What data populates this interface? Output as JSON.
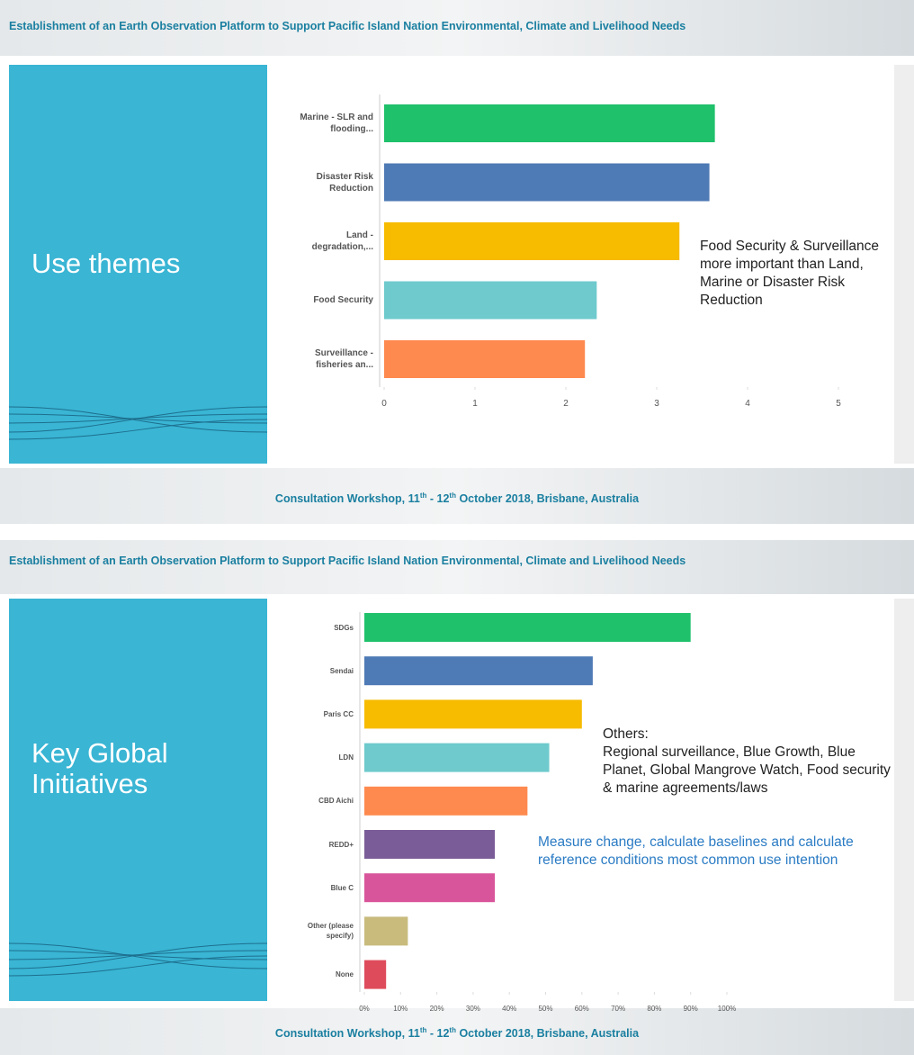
{
  "slides": [
    {
      "header": "Establishment of an Earth Observation Platform to Support Pacific Island Nation Environmental, Climate and Livelihood Needs",
      "side_title": "Use themes",
      "footer": [
        "Consultation Workshop, 11",
        "th",
        " - 12",
        "th",
        " October 2018, Brisbane, Australia"
      ]
    },
    {
      "header": "Establishment of an Earth Observation Platform to Support Pacific Island Nation Environmental, Climate and Livelihood Needs",
      "side_title": "Key Global Initiatives",
      "footer": [
        "Consultation Workshop, 11",
        "th",
        " - 12",
        "th",
        " October 2018, Brisbane, Australia"
      ]
    }
  ],
  "chart_data": [
    {
      "type": "hbar",
      "categories": [
        "Marine - SLR and flooding...",
        "Disaster Risk Reduction",
        "Land - degradation,...",
        "Food Security",
        "Surveillance - fisheries an..."
      ],
      "values": [
        3.64,
        3.58,
        3.25,
        2.34,
        2.21
      ],
      "colors": [
        "#1fc16b",
        "#4e7ab5",
        "#f7bb00",
        "#6ecacd",
        "#fe8a4f"
      ],
      "xlim": [
        0,
        5
      ],
      "xticks": [
        0,
        1,
        2,
        3,
        4,
        5
      ],
      "annotations": [
        {
          "text": "Food Security & Surveillance more important than Land, Marine or Disaster Risk Reduction",
          "color": "#222222"
        }
      ]
    },
    {
      "type": "hbar",
      "categories": [
        "SDGs",
        "Sendai",
        "Paris CC",
        "LDN",
        "CBD Aichi",
        "REDD+",
        "Blue C",
        "Other (please specify)",
        "None"
      ],
      "values": [
        90,
        63,
        60,
        51,
        45,
        36,
        36,
        12,
        6
      ],
      "colors": [
        "#1fc16b",
        "#4e7ab5",
        "#f7bb00",
        "#6ecacd",
        "#fe8a4f",
        "#7a5d98",
        "#d9559b",
        "#c8bb7c",
        "#de4c5b"
      ],
      "xlim": [
        0,
        100
      ],
      "xticks": [
        {
          "value": 0,
          "label": "0%"
        },
        {
          "value": 10,
          "label": "10%"
        },
        {
          "value": 20,
          "label": "20%"
        },
        {
          "value": 30,
          "label": "30%"
        },
        {
          "value": 40,
          "label": "40%"
        },
        {
          "value": 50,
          "label": "50%"
        },
        {
          "value": 60,
          "label": "60%"
        },
        {
          "value": 70,
          "label": "70%"
        },
        {
          "value": 80,
          "label": "80%"
        },
        {
          "value": 90,
          "label": "90%"
        },
        {
          "value": 100,
          "label": "100%"
        }
      ],
      "annotations": [
        {
          "text": "Others:",
          "color": "#222222"
        },
        {
          "text": "Regional surveillance, Blue Growth, Blue Planet, Global Mangrove Watch, Food security & marine agreements/laws",
          "color": "#222222"
        },
        {
          "text": "Measure change, calculate baselines and calculate reference conditions most common use intention",
          "color": "#2a7bc4"
        }
      ]
    }
  ]
}
